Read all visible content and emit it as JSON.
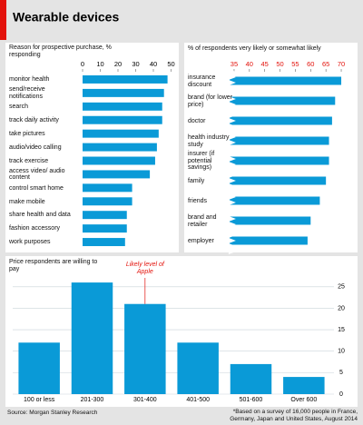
{
  "title": "Wearable devices",
  "source": "Source: Morgan Stanley Research",
  "footnote": "*Based on a survey of 16,000 people in France, Germany, Japan and United States, August 2014",
  "chart_data": [
    {
      "type": "hbar",
      "subtitle": "Reason for prospective purchase, % responding",
      "categories": [
        "monitor health",
        "send/receive notifications",
        "search",
        "track daily activity",
        "take pictures",
        "audio/video calling",
        "track exercise",
        "access video/ audio content",
        "control smart home",
        "make mobile",
        "share health and data",
        "fashion accessory",
        "work purposes"
      ],
      "values": [
        48,
        46,
        45,
        45,
        43,
        42,
        41,
        38,
        28,
        28,
        25,
        25,
        24
      ],
      "color": "#0a9ad7",
      "xlim": [
        0,
        50
      ],
      "xticks": [
        0,
        10,
        20,
        30,
        40,
        50
      ],
      "tick_color": "#000000"
    },
    {
      "type": "hbar",
      "subtitle": "% of respondents very likely or somewhat likely",
      "categories": [
        "insurance discount",
        "brand (for lower price)",
        "doctor",
        "health industry study",
        "insurer (if potential savings)",
        "family",
        "friends",
        "brand and retailer",
        "employer"
      ],
      "values": [
        70,
        68,
        67,
        66,
        66,
        65,
        63,
        60,
        59
      ],
      "color": "#0a9ad7",
      "xlim": [
        33.5,
        71
      ],
      "xticks": [
        35,
        40,
        45,
        50,
        55,
        60,
        65,
        70
      ],
      "tick_color": "#e3120b",
      "axis_break": true
    },
    {
      "type": "bar",
      "subtitle": "Price respondents are willing to pay",
      "categories": [
        "100 or less",
        "201-300",
        "301-400",
        "401-500",
        "501-600",
        "Over 600"
      ],
      "values": [
        12,
        26,
        21,
        12,
        7,
        4
      ],
      "color": "#0a9ad7",
      "ylim": [
        0,
        27.5
      ],
      "yticks": [
        0,
        5,
        10,
        15,
        20,
        25
      ],
      "grid": true,
      "annotation": "Likely level of Apple"
    }
  ]
}
